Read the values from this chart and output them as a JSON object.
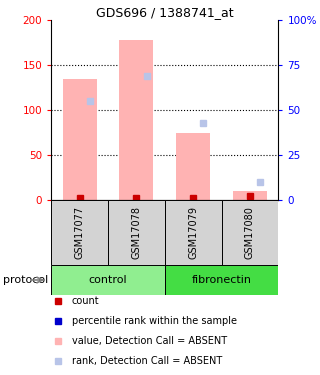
{
  "title": "GDS696 / 1388741_at",
  "samples": [
    "GSM17077",
    "GSM17078",
    "GSM17079",
    "GSM17080"
  ],
  "bar_values": [
    135,
    178,
    75,
    10
  ],
  "rank_values_pct": [
    55,
    69,
    43,
    10
  ],
  "count_values": [
    2,
    2,
    2,
    4
  ],
  "ylim_left": [
    0,
    200
  ],
  "ylim_right": [
    0,
    100
  ],
  "yticks_left": [
    0,
    50,
    100,
    150,
    200
  ],
  "yticks_right": [
    0,
    25,
    50,
    75,
    100
  ],
  "ytick_labels_left": [
    "0",
    "50",
    "100",
    "150",
    "200"
  ],
  "ytick_labels_right": [
    "0",
    "25",
    "50",
    "75",
    "100%"
  ],
  "bar_color_absent": "#ffb3b3",
  "rank_color_absent": "#b8c4e8",
  "count_color": "#cc0000",
  "rank_dot_color": "#0000cc",
  "group_colors": {
    "control": "#90ee90",
    "fibronectin": "#44dd44"
  },
  "sample_bg_color": "#d3d3d3",
  "protocol_label": "protocol",
  "legend_items": [
    {
      "color": "#cc0000",
      "label": "count"
    },
    {
      "color": "#0000cc",
      "label": "percentile rank within the sample"
    },
    {
      "color": "#ffb3b3",
      "label": "value, Detection Call = ABSENT"
    },
    {
      "color": "#b8c4e8",
      "label": "rank, Detection Call = ABSENT"
    }
  ]
}
